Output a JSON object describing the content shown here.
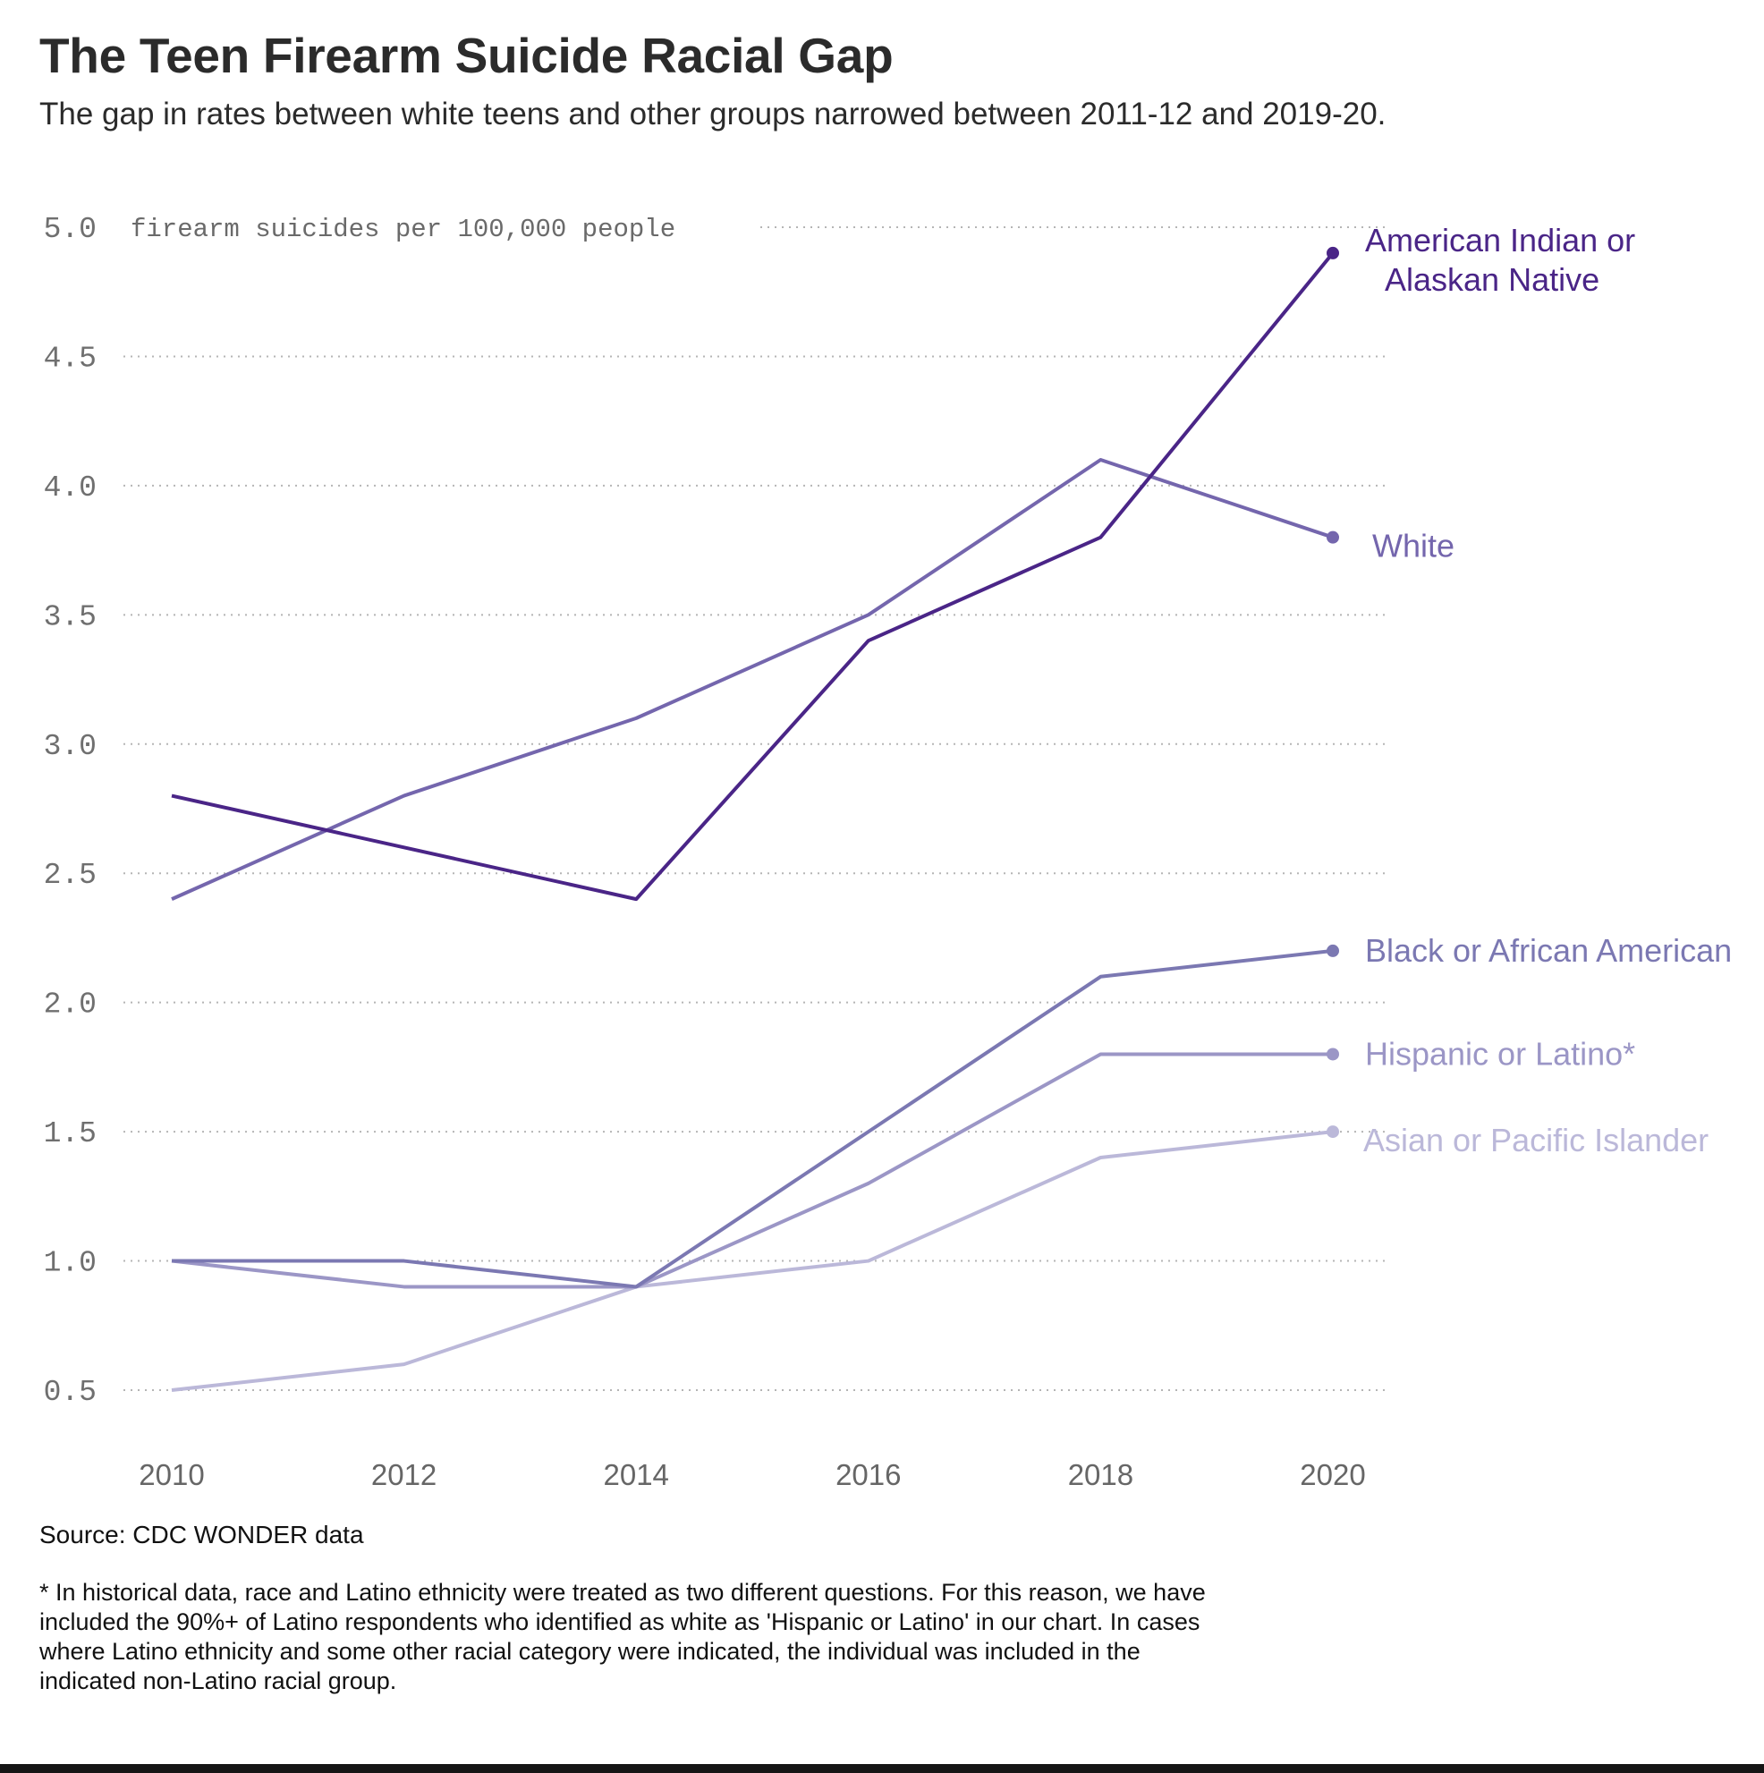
{
  "title": "The Teen Firearm Suicide Racial Gap",
  "subtitle": "The gap in rates between white teens and other groups narrowed between 2011-12 and 2019-20.",
  "source": "Source: CDC WONDER data",
  "footnote": "* In historical data, race and Latino ethnicity were treated as two different questions. For this reason, we have included the 90%+ of Latino respondents who identified as white as 'Hispanic or Latino' in our chart. In cases where Latino ethnicity and some other racial category were indicated, the individual was included in the indicated non-Latino racial group.",
  "chart_data": {
    "type": "line",
    "title": "The Teen Firearm Suicide Racial Gap",
    "subtitle": "The gap in rates between white teens and other groups narrowed between 2011-12 and 2019-20.",
    "ylabel": "firearm suicides per 100,000 people",
    "xlabel": "",
    "x": [
      2010,
      2012,
      2014,
      2016,
      2018,
      2020
    ],
    "x_tick_labels": [
      "2010",
      "2012",
      "2014",
      "2016",
      "2018",
      "2020"
    ],
    "y_tick_labels": [
      "0.5",
      "1.0",
      "1.5",
      "2.0",
      "2.5",
      "3.0",
      "3.5",
      "4.0",
      "4.5",
      "5.0"
    ],
    "ylim": [
      0.5,
      5.0
    ],
    "xlim": [
      2010,
      2020
    ],
    "grid": "horizontal dotted",
    "legend": "direct labels at line ends (right)",
    "series": [
      {
        "name": "American Indian or Alaskan Native",
        "label_lines": [
          "American Indian or",
          "Alaskan Native"
        ],
        "color": "#4a2587",
        "values": [
          2.8,
          2.6,
          2.4,
          3.4,
          3.8,
          4.9
        ]
      },
      {
        "name": "White",
        "label_lines": [
          "White"
        ],
        "color": "#7466ad",
        "values": [
          2.4,
          2.8,
          3.1,
          3.5,
          4.1,
          3.8
        ]
      },
      {
        "name": "Black or African American",
        "label_lines": [
          "Black or African American"
        ],
        "color": "#7b78b2",
        "values": [
          1.0,
          1.0,
          0.9,
          1.5,
          2.1,
          2.2
        ]
      },
      {
        "name": "Hispanic or Latino*",
        "label_lines": [
          "Hispanic or Latino*"
        ],
        "color": "#9b96c6",
        "values": [
          1.0,
          0.9,
          0.9,
          1.3,
          1.8,
          1.8
        ]
      },
      {
        "name": "Asian or Pacific Islander",
        "label_lines": [
          "Asian or Pacific Islander"
        ],
        "color": "#bbb8d9",
        "values": [
          0.5,
          0.6,
          0.9,
          1.0,
          1.4,
          1.5
        ]
      }
    ]
  }
}
